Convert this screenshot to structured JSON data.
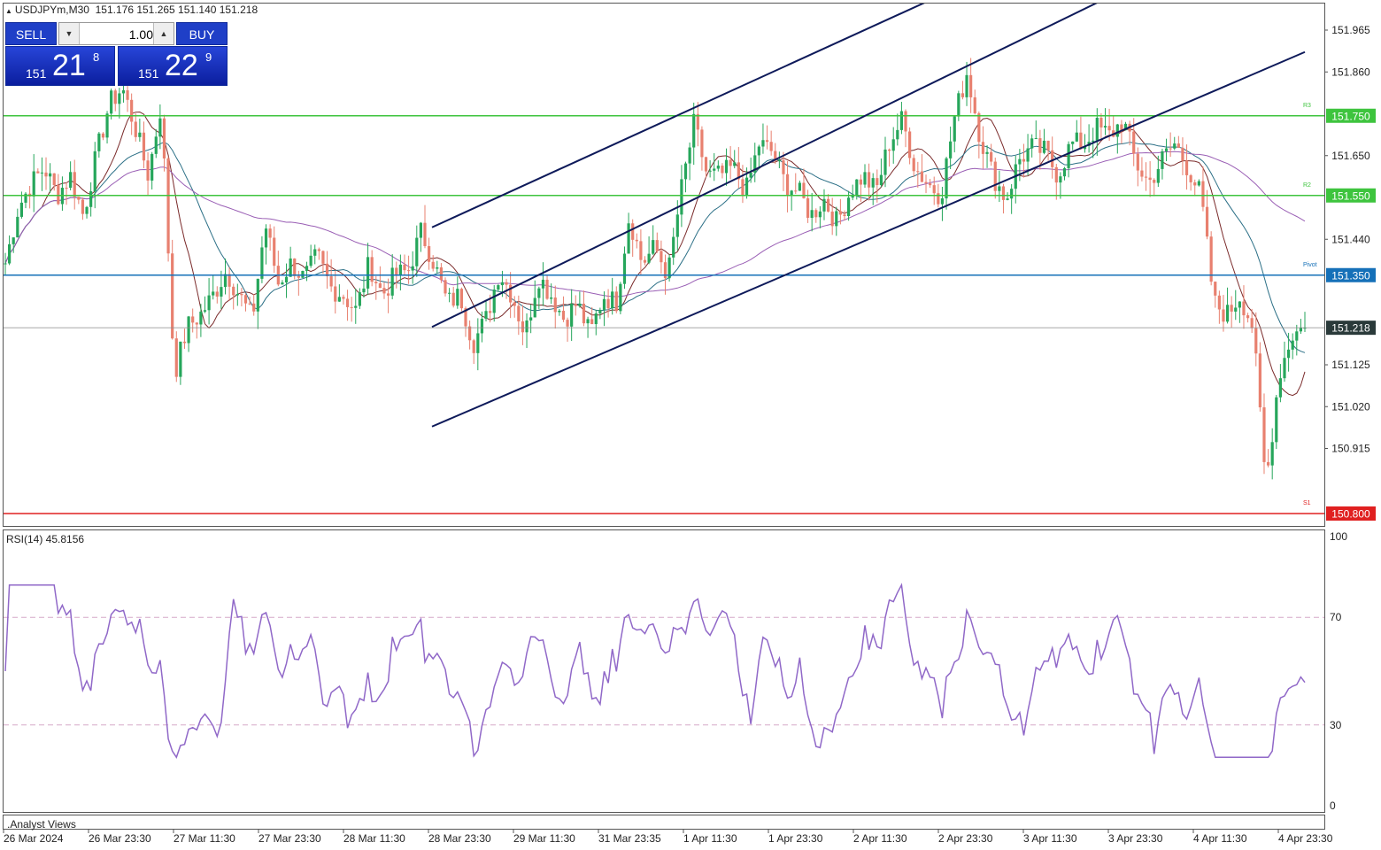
{
  "symbol_info": {
    "symbol": "USDJPYm,M30",
    "ohlc": "151.176 151.265 151.140 151.218"
  },
  "trade_panel": {
    "sell_label": "SELL",
    "buy_label": "BUY",
    "lot": "1.00",
    "sell_price": {
      "small": "151",
      "big": "21",
      "sup": "8"
    },
    "buy_price": {
      "small": "151",
      "big": "22",
      "sup": "9"
    }
  },
  "rsi_label": "RSI(14) 45.8156",
  "analyst_label": ".Analyst Views",
  "colors": {
    "bull": "#26a65b",
    "bear": "#e8806f",
    "green_level": "#3ec43e",
    "blue_level": "#1570b8",
    "red_level": "#e02020",
    "rsi": "#9068c8",
    "channel": "#0e1a5a"
  },
  "chart_data": {
    "type": "candlestick",
    "price_axis": {
      "min": 150.8,
      "max": 152.0,
      "ticks": [
        "151.965",
        "151.860",
        "151.750",
        "151.650",
        "151.550",
        "151.440",
        "151.350",
        "151.218",
        "151.125",
        "151.020",
        "150.915",
        "150.800"
      ]
    },
    "time_labels": [
      "26 Mar 2024",
      "26 Mar 23:30",
      "27 Mar 11:30",
      "27 Mar 23:30",
      "28 Mar 11:30",
      "28 Mar 23:30",
      "29 Mar 11:30",
      "31 Mar 23:35",
      "1 Apr 11:30",
      "1 Apr 23:30",
      "2 Apr 11:30",
      "2 Apr 23:30",
      "3 Apr 11:30",
      "3 Apr 23:30",
      "4 Apr 11:30",
      "4 Apr 23:30"
    ],
    "levels": [
      {
        "label": "R3",
        "value": "151.750",
        "color": "green"
      },
      {
        "label": "R2",
        "value": "151.550",
        "color": "green"
      },
      {
        "label": "Pivot",
        "value": "151.350",
        "color": "blue"
      },
      {
        "label": "S1",
        "value": "150.800",
        "color": "red"
      },
      {
        "label": "",
        "value": "151.218",
        "color": "current"
      }
    ],
    "channels": [
      {
        "from": [
          "28 Mar 23:30",
          151.47
        ],
        "to": [
          "2 Apr 23:30",
          152.08
        ]
      },
      {
        "from": [
          "28 Mar 23:30",
          151.22
        ],
        "to": [
          "3 Apr 23:30",
          152.08
        ]
      },
      {
        "from": [
          "28 Mar 23:30",
          150.97
        ],
        "to": [
          "4 Apr 23:30",
          151.91
        ]
      }
    ],
    "rsi": {
      "period": 14,
      "value": 45.8156,
      "levels": [
        "30",
        "70"
      ],
      "axis": [
        "100",
        "70",
        "30",
        "0"
      ]
    },
    "anchor_prices": [
      151.38,
      151.52,
      151.58,
      151.62,
      151.55,
      151.6,
      151.5,
      151.65,
      151.78,
      151.82,
      151.72,
      151.6,
      151.78,
      151.1,
      151.22,
      151.25,
      151.3,
      151.36,
      151.3,
      151.24,
      151.48,
      151.33,
      151.38,
      151.34,
      151.4,
      151.32,
      151.3,
      151.26,
      151.38,
      151.3,
      151.35,
      151.36,
      151.46,
      151.38,
      151.28,
      151.3,
      151.18,
      151.24,
      151.36,
      151.3,
      151.2,
      151.35,
      151.3,
      151.24,
      151.28,
      151.2,
      151.3,
      151.28,
      151.5,
      151.38,
      151.42,
      151.35,
      151.56,
      151.73,
      151.6,
      151.6,
      151.62,
      151.56,
      151.68,
      151.66,
      151.58,
      151.56,
      151.5,
      151.54,
      151.48,
      151.56,
      151.6,
      151.56,
      151.68,
      151.74,
      151.62,
      151.58,
      151.55,
      151.74,
      151.86,
      151.7,
      151.6,
      151.54,
      151.64,
      151.67,
      151.66,
      151.6,
      151.68,
      151.68,
      151.72,
      151.7,
      151.74,
      151.63,
      151.58,
      151.64,
      151.68,
      151.62,
      151.55,
      151.28,
      151.25,
      151.3,
      151.22,
      150.82,
      151.1,
      151.2,
      151.22
    ]
  }
}
